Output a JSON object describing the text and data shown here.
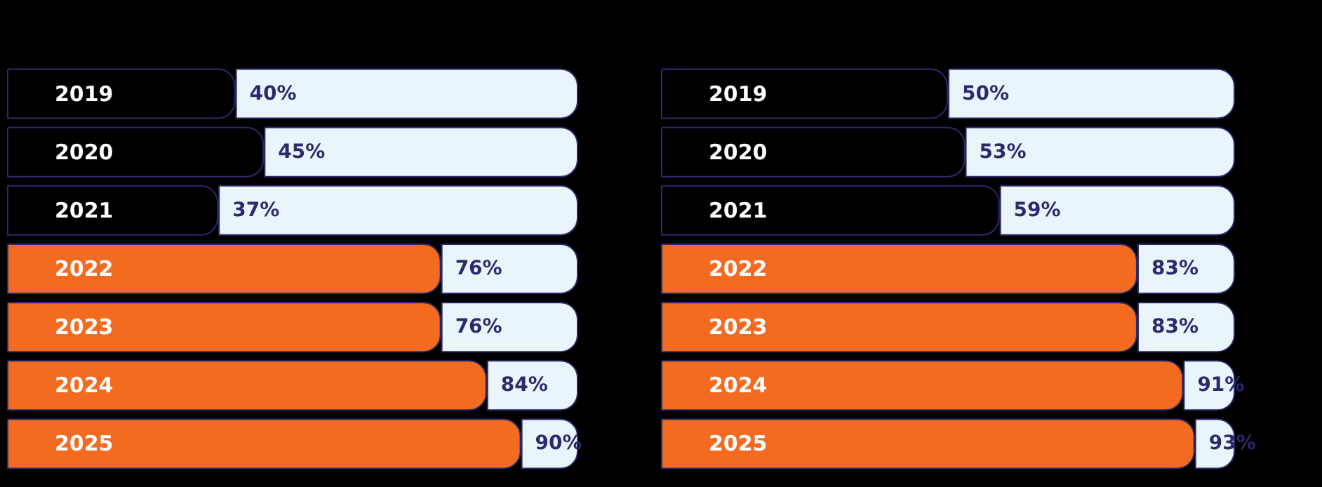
{
  "chart_data": [
    {
      "type": "bar",
      "orientation": "horizontal",
      "categories": [
        "2019",
        "2020",
        "2021",
        "2022",
        "2023",
        "2024",
        "2025"
      ],
      "series": [
        {
          "values": [
            40,
            45,
            37,
            76,
            76,
            84,
            90
          ],
          "value_labels": [
            "40%",
            "45%",
            "37%",
            "76%",
            "76%",
            "84%",
            "90%"
          ],
          "colors": [
            "#000000",
            "#000000",
            "#000000",
            "#f26b21",
            "#f26b21",
            "#f26b21",
            "#f26b21"
          ]
        },
        {
          "color": "#eaf4fb",
          "values": [
            60,
            55,
            63,
            24,
            24,
            16,
            10
          ]
        }
      ],
      "stacked": true,
      "xlim": [
        0,
        100
      ],
      "tick_labels": "y"
    },
    {
      "type": "bar",
      "orientation": "horizontal",
      "categories": [
        "2019",
        "2020",
        "2021",
        "2022",
        "2023",
        "2024",
        "2025"
      ],
      "series": [
        {
          "values": [
            50,
            53,
            59,
            83,
            83,
            91,
            93
          ],
          "value_labels": [
            "50%",
            "53%",
            "59%",
            "83%",
            "83%",
            "91%",
            "93%"
          ],
          "colors": [
            "#000000",
            "#000000",
            "#000000",
            "#f26b21",
            "#f26b21",
            "#f26b21",
            "#f26b21"
          ]
        },
        {
          "color": "#eaf4fb",
          "values": [
            50,
            47,
            41,
            17,
            17,
            9,
            7
          ]
        }
      ],
      "stacked": true,
      "xlim": [
        0,
        100
      ],
      "tick_labels": "y"
    }
  ]
}
